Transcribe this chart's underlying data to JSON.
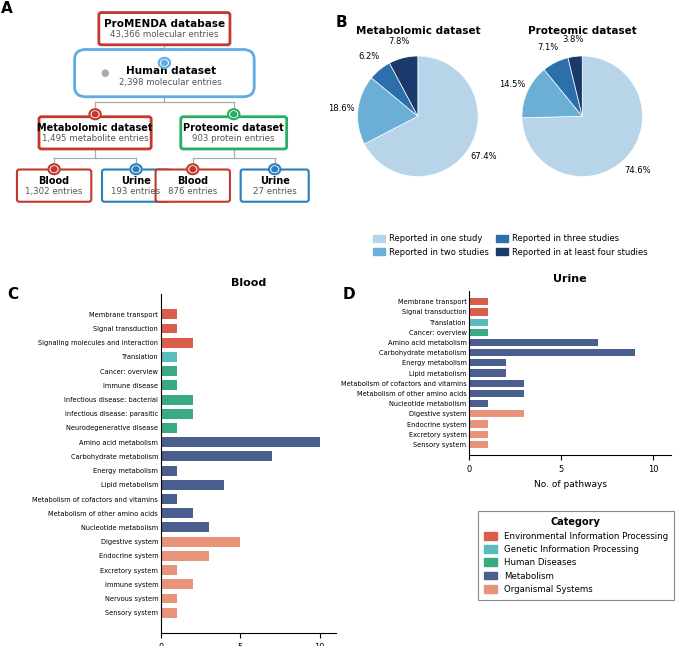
{
  "panel_B": {
    "metabolomic_values": [
      67.4,
      18.6,
      6.2,
      7.8
    ],
    "proteomic_values": [
      74.6,
      14.5,
      7.1,
      3.8
    ],
    "colors": [
      "#b8d4e8",
      "#6baed6",
      "#2c6fad",
      "#1a3a6b"
    ],
    "legend_labels": [
      "Reported in one study",
      "Reported in two studies",
      "Reported in three studies",
      "Reported in at least four studies"
    ]
  },
  "panel_C": {
    "title": "Blood",
    "categories": [
      "Membrane transport",
      "Signal transduction",
      "Signaling molecules and interaction",
      "Translation",
      "Cancer: overview",
      "Immune disease",
      "Infectious disease: bacterial",
      "Infectious disease: parasitic",
      "Neurodegenerative disease",
      "Amino acid metabolism",
      "Carbohydrate metabolism",
      "Energy metabolism",
      "Lipid metabolism",
      "Metabolism of cofactors and vitamins",
      "Metabolism of other amino acids",
      "Nucleotide metabolism",
      "Digestive system",
      "Endocrine system",
      "Excretory system",
      "Immune system",
      "Nervous system",
      "Sensory system"
    ],
    "values": [
      1,
      1,
      2,
      1,
      1,
      1,
      2,
      2,
      1,
      10,
      7,
      1,
      4,
      1,
      2,
      3,
      5,
      3,
      1,
      2,
      1,
      1
    ],
    "colors": [
      "#d95f4b",
      "#d95f4b",
      "#d95f4b",
      "#5bbcbe",
      "#3aaa85",
      "#3aaa85",
      "#3aaa85",
      "#3aaa85",
      "#3aaa85",
      "#4a5f8f",
      "#4a5f8f",
      "#4a5f8f",
      "#4a5f8f",
      "#4a5f8f",
      "#4a5f8f",
      "#4a5f8f",
      "#e8937a",
      "#e8937a",
      "#e8937a",
      "#e8937a",
      "#e8937a",
      "#e8937a"
    ]
  },
  "panel_D": {
    "title": "Urine",
    "categories": [
      "Membrane transport",
      "Signal transduction",
      "Translation",
      "Cancer: overview",
      "Amino acid metabolism",
      "Carbohydrate metabolism",
      "Energy metabolism",
      "Lipid metabolism",
      "Metabolism of cofactors and vitamins",
      "Metabolism of other amino acids",
      "Nucleotide metabolism",
      "Digestive system",
      "Endocrine system",
      "Excretory system",
      "Sensory system"
    ],
    "values": [
      1,
      1,
      1,
      1,
      7,
      9,
      2,
      2,
      3,
      3,
      1,
      3,
      1,
      1,
      1
    ],
    "colors": [
      "#d95f4b",
      "#d95f4b",
      "#5bbcbe",
      "#3aaa85",
      "#4a5f8f",
      "#4a5f8f",
      "#4a5f8f",
      "#4a5f8f",
      "#4a5f8f",
      "#4a5f8f",
      "#4a5f8f",
      "#e8937a",
      "#e8937a",
      "#e8937a",
      "#e8937a"
    ]
  },
  "legend_D": {
    "categories": [
      "Environmental Information Processing",
      "Genetic Information Processing",
      "Human Diseases",
      "Metabolism",
      "Organismal Systems"
    ],
    "colors": [
      "#d95f4b",
      "#5bbcbe",
      "#3aaa85",
      "#4a5f8f",
      "#e8937a"
    ]
  }
}
